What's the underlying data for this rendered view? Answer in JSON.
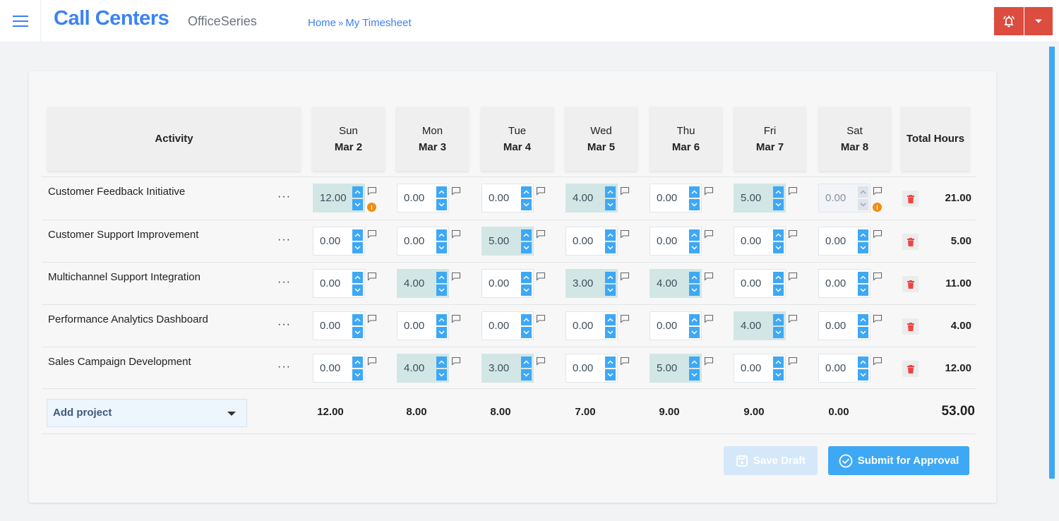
{
  "header": {
    "app_title": "Call Centers",
    "subtitle": "OfficeSeries",
    "breadcrumb": [
      {
        "label": "Home"
      },
      {
        "label": "My Timesheet"
      }
    ],
    "breadcrumb_separator": "»",
    "alert_color": "#dc4c3f"
  },
  "table": {
    "activity_header": "Activity",
    "total_header": "Total Hours",
    "days": [
      {
        "day": "Sun",
        "date": "Mar 2"
      },
      {
        "day": "Mon",
        "date": "Mar 3"
      },
      {
        "day": "Tue",
        "date": "Mar 4"
      },
      {
        "day": "Wed",
        "date": "Mar 5"
      },
      {
        "day": "Thu",
        "date": "Mar 6"
      },
      {
        "day": "Fri",
        "date": "Mar 7"
      },
      {
        "day": "Sat",
        "date": "Mar 8"
      }
    ],
    "rows": [
      {
        "activity": "Customer Feedback Initiative",
        "hours": [
          "12.00",
          "0.00",
          "0.00",
          "4.00",
          "0.00",
          "5.00",
          "0.00"
        ],
        "total": "21.00"
      },
      {
        "activity": "Customer Support Improvement",
        "hours": [
          "0.00",
          "0.00",
          "5.00",
          "0.00",
          "0.00",
          "0.00",
          "0.00"
        ],
        "total": "5.00"
      },
      {
        "activity": "Multichannel Support Integration",
        "hours": [
          "0.00",
          "4.00",
          "0.00",
          "3.00",
          "4.00",
          "0.00",
          "0.00"
        ],
        "total": "11.00"
      },
      {
        "activity": "Performance Analytics Dashboard",
        "hours": [
          "0.00",
          "0.00",
          "0.00",
          "0.00",
          "0.00",
          "4.00",
          "0.00"
        ],
        "total": "4.00"
      },
      {
        "activity": "Sales Campaign Development",
        "hours": [
          "0.00",
          "4.00",
          "3.00",
          "0.00",
          "5.00",
          "0.00",
          "0.00"
        ],
        "total": "12.00"
      }
    ],
    "row_menu_label": "···",
    "info_marker": "i",
    "day_totals": [
      "12.00",
      "8.00",
      "8.00",
      "7.00",
      "9.00",
      "9.00",
      "0.00"
    ],
    "grand_total": "53.00"
  },
  "footer": {
    "add_project_label": "Add project",
    "save_draft_label": "Save Draft",
    "submit_label": "Submit for Approval",
    "accent_color": "#3ea8f5"
  }
}
